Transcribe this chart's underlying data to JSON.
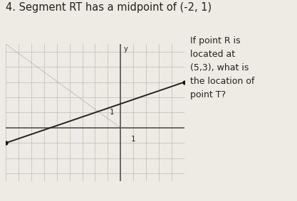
{
  "title": "4. Segment RT has a midpoint of (-2, 1)",
  "title_fontsize": 10.5,
  "R": [
    5,
    3
  ],
  "T": [
    -9,
    -1
  ],
  "midpoint": [
    -2,
    1
  ],
  "xlim": [
    -9,
    5
  ],
  "ylim": [
    -3.5,
    5.5
  ],
  "x_tick_label": "1",
  "x_tick_label_pos": [
    1,
    -0.5
  ],
  "y_tick_label": "1",
  "y_tick_label_pos": [
    -0.5,
    1
  ],
  "segment_color": "#222222",
  "dot_color": "#111111",
  "grid_color": "#bbbbbb",
  "axis_color": "#555555",
  "background_color": "#eeebe5",
  "text_color": "#222222",
  "side_text": "If point R is\nlocated at\n(5,3), what is\nthe location of\npoint T?",
  "side_text_fontsize": 9,
  "faint_line_x1": -9,
  "faint_line_y1": 5.5,
  "faint_line_x2": 0,
  "faint_line_y2": 0
}
